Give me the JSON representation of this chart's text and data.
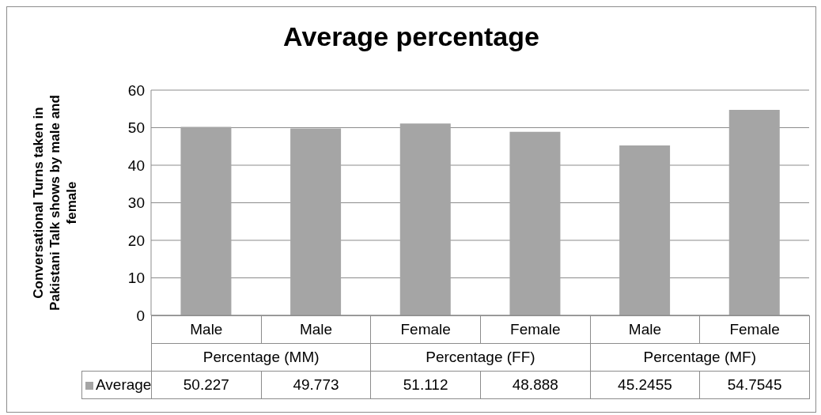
{
  "chart_data": {
    "type": "bar",
    "title": "Average percentage",
    "ylabel": "Conversational Turns taken in Pakistani Talk shows by male and female",
    "categories": [
      "Male",
      "Male",
      "Female",
      "Female",
      "Male",
      "Female"
    ],
    "series": [
      {
        "name": "Average",
        "color": "#a5a5a5",
        "values": [
          50.227,
          49.773,
          51.112,
          48.888,
          45.2455,
          54.7545
        ]
      }
    ],
    "annotations": [
      "Percentage (MM)",
      "Percentage (FF)",
      "Percentage (MF)"
    ],
    "ylim": [
      0,
      60
    ],
    "yticks": [
      0,
      10,
      20,
      30,
      40,
      50,
      60
    ],
    "grid": "y",
    "legend": "bottom",
    "data_labels": true
  }
}
